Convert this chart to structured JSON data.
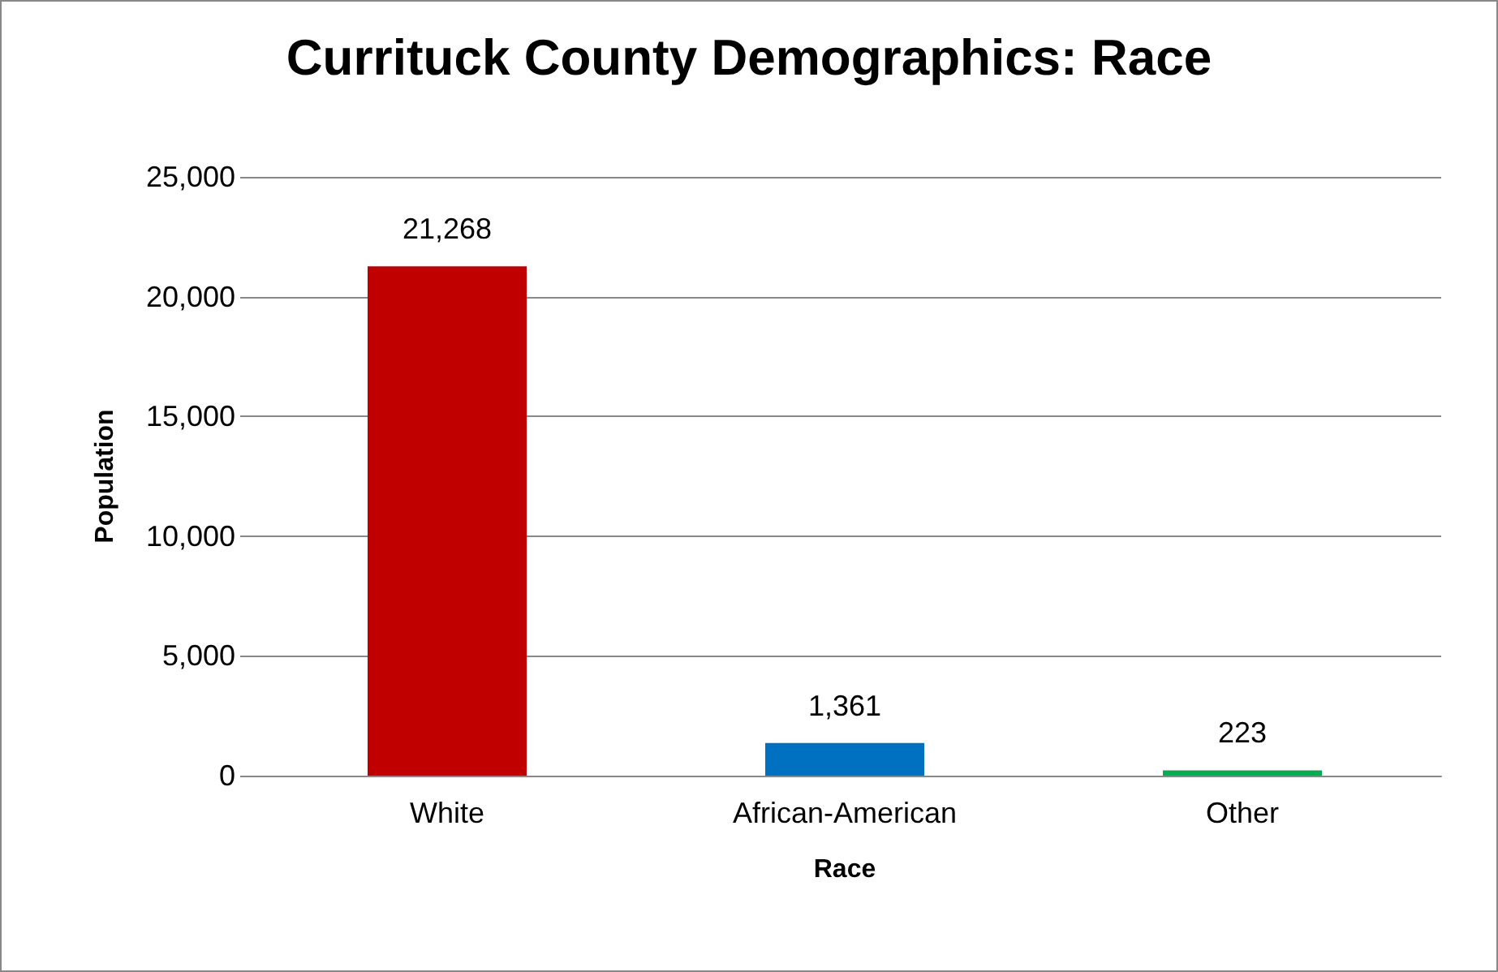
{
  "chart_data": {
    "type": "bar",
    "title": "Currituck County Demographics: Race",
    "xlabel": "Race",
    "ylabel": "Population",
    "categories": [
      "White",
      "African-American",
      "Other"
    ],
    "values": [
      21268,
      1361,
      223
    ],
    "value_labels": [
      "21,268",
      "1,361",
      "223"
    ],
    "colors": [
      "#c00000",
      "#0070c0",
      "#00b050"
    ],
    "ylim": [
      0,
      25000
    ],
    "yticks": [
      0,
      {
        "value": 5000,
        "label": "5,000"
      },
      {
        "value": 10000,
        "label": "10,000"
      },
      {
        "value": 15000,
        "label": "15,000"
      },
      {
        "value": 20000,
        "label": "20,000"
      },
      {
        "value": 25000,
        "label": "25,000"
      }
    ],
    "grid": "y"
  }
}
